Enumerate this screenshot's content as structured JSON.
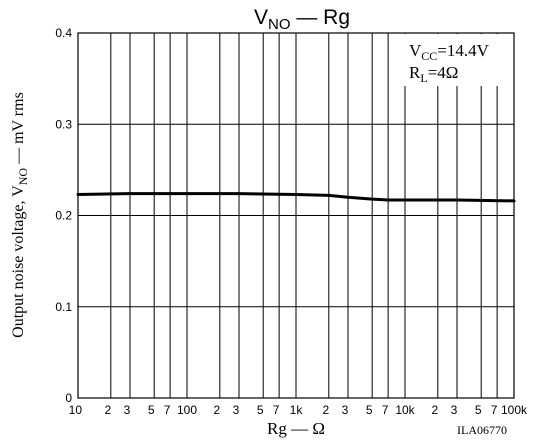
{
  "chart_data": {
    "type": "line",
    "title": "VNO — Rg",
    "title_parts": {
      "main": "V",
      "sub": "NO",
      "rest": " — Rg"
    },
    "xscale": "log",
    "xlim": [
      10,
      100000
    ],
    "ylim": [
      0,
      0.4
    ],
    "grid": true,
    "xlabel": "Rg — Ω",
    "ylabel_parts": {
      "pre": "Output noise voltage, V",
      "sub": "NO",
      "post": " — mV rms"
    },
    "yticks": [
      "0",
      "0.1",
      "0.2",
      "0.3",
      "0.4"
    ],
    "xticks_major": [
      {
        "value": 10,
        "label": "10"
      },
      {
        "value": 100,
        "label": "100"
      },
      {
        "value": 1000,
        "label": "1k"
      },
      {
        "value": 10000,
        "label": "10k"
      },
      {
        "value": 100000,
        "label": "100k"
      }
    ],
    "xticks_minor": [
      {
        "value": 20,
        "label": "2"
      },
      {
        "value": 30,
        "label": "3"
      },
      {
        "value": 50,
        "label": "5"
      },
      {
        "value": 70,
        "label": "7"
      },
      {
        "value": 200,
        "label": "2"
      },
      {
        "value": 300,
        "label": "3"
      },
      {
        "value": 500,
        "label": "5"
      },
      {
        "value": 700,
        "label": "7"
      },
      {
        "value": 2000,
        "label": "2"
      },
      {
        "value": 3000,
        "label": "3"
      },
      {
        "value": 5000,
        "label": "5"
      },
      {
        "value": 7000,
        "label": "7"
      },
      {
        "value": 20000,
        "label": "2"
      },
      {
        "value": 30000,
        "label": "3"
      },
      {
        "value": 50000,
        "label": "5"
      },
      {
        "value": 70000,
        "label": "7"
      }
    ],
    "series": [
      {
        "x": [
          10,
          30,
          100,
          300,
          1000,
          2000,
          3000,
          5000,
          7000,
          10000,
          30000,
          100000
        ],
        "y": [
          0.223,
          0.224,
          0.224,
          0.224,
          0.223,
          0.222,
          0.22,
          0.218,
          0.217,
          0.217,
          0.217,
          0.216
        ]
      }
    ],
    "annotations": {
      "vcc": {
        "main": "V",
        "sub": "CC",
        "rest": "=14.4V"
      },
      "rl": {
        "main": "R",
        "sub": "L",
        "rest": "=4Ω"
      }
    },
    "figure_code": "ILA06770"
  }
}
